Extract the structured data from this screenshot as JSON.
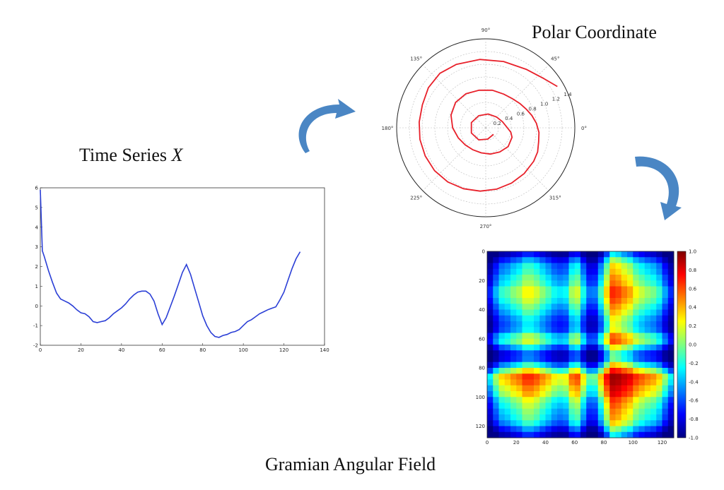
{
  "titles": {
    "time_series": "Time Series",
    "time_series_var": "X",
    "polar": "Polar Coordinate",
    "gaf": "Gramian Angular Field"
  },
  "colors": {
    "time_series_line": "#2b3fd6",
    "polar_line": "#e8202a",
    "arrow": "#4a86c4",
    "grid": "#bbbbbb"
  },
  "chart_data": [
    {
      "type": "line",
      "name": "time-series",
      "xlim": [
        0,
        140
      ],
      "ylim": [
        -2,
        6
      ],
      "xticks": [
        "0",
        "20",
        "40",
        "60",
        "80",
        "100",
        "120",
        "140"
      ],
      "yticks": [
        "6",
        "5",
        "4",
        "3",
        "2",
        "1",
        "0",
        "-1",
        "-2"
      ],
      "x": [
        0,
        1,
        2,
        4,
        6,
        8,
        10,
        12,
        14,
        16,
        18,
        20,
        22,
        24,
        26,
        28,
        30,
        32,
        34,
        36,
        38,
        40,
        42,
        44,
        46,
        48,
        50,
        52,
        54,
        56,
        58,
        60,
        62,
        64,
        66,
        68,
        70,
        72,
        74,
        76,
        78,
        80,
        82,
        84,
        86,
        88,
        90,
        92,
        94,
        96,
        98,
        100,
        102,
        104,
        106,
        108,
        110,
        112,
        114,
        116,
        118,
        120,
        122,
        124,
        126,
        128
      ],
      "y": [
        5.9,
        2.8,
        2.5,
        1.8,
        1.2,
        0.65,
        0.35,
        0.25,
        0.15,
        0.0,
        -0.2,
        -0.35,
        -0.4,
        -0.55,
        -0.8,
        -0.85,
        -0.8,
        -0.75,
        -0.6,
        -0.4,
        -0.25,
        -0.1,
        0.1,
        0.35,
        0.55,
        0.7,
        0.75,
        0.75,
        0.6,
        0.25,
        -0.4,
        -0.95,
        -0.6,
        -0.05,
        0.5,
        1.1,
        1.7,
        2.1,
        1.6,
        0.9,
        0.2,
        -0.5,
        -1.0,
        -1.35,
        -1.55,
        -1.6,
        -1.5,
        -1.45,
        -1.35,
        -1.3,
        -1.2,
        -1.0,
        -0.8,
        -0.7,
        -0.55,
        -0.4,
        -0.3,
        -0.2,
        -0.12,
        -0.05,
        0.3,
        0.7,
        1.3,
        1.9,
        2.4,
        2.75
      ]
    },
    {
      "type": "line",
      "name": "polar-coordinate",
      "rlim": [
        0,
        1.4
      ],
      "rticks": [
        "0.2",
        "0.4",
        "0.6",
        "0.8",
        "1.0",
        "1.2",
        "1.4"
      ],
      "angle_ticks": [
        "0°",
        "45°",
        "90°",
        "135°",
        "180°",
        "225°",
        "270°",
        "315°"
      ],
      "theta_deg": [
        30,
        40,
        55,
        75,
        95,
        115,
        130,
        145,
        160,
        175,
        190,
        205,
        220,
        235,
        250,
        265,
        280,
        295,
        310,
        325,
        335,
        345,
        355,
        5,
        15,
        25,
        35,
        48,
        62,
        80,
        100,
        120,
        140,
        160,
        180,
        200,
        220,
        240,
        260,
        280,
        300,
        320,
        340,
        350,
        0,
        20,
        45,
        80,
        120,
        160,
        200,
        240,
        280,
        320
      ],
      "r": [
        1.3,
        1.2,
        1.12,
        1.08,
        1.08,
        1.1,
        1.12,
        1.1,
        1.06,
        1.05,
        1.05,
        1.05,
        1.05,
        1.04,
        1.02,
        1.0,
        0.98,
        0.96,
        0.94,
        0.92,
        0.9,
        0.86,
        0.84,
        0.8,
        0.75,
        0.7,
        0.66,
        0.62,
        0.6,
        0.6,
        0.6,
        0.62,
        0.62,
        0.58,
        0.52,
        0.46,
        0.42,
        0.4,
        0.4,
        0.42,
        0.44,
        0.46,
        0.44,
        0.4,
        0.34,
        0.28,
        0.24,
        0.22,
        0.22,
        0.24,
        0.24,
        0.22,
        0.18,
        0.16
      ]
    },
    {
      "type": "heatmap",
      "name": "gramian-angular-field",
      "size": 128,
      "xticks": [
        "0",
        "20",
        "40",
        "60",
        "80",
        "100",
        "120"
      ],
      "yticks": [
        "0",
        "20",
        "40",
        "60",
        "80",
        "100",
        "120"
      ],
      "colorbar": [
        "1.0",
        "0.8",
        "0.6",
        "0.4",
        "0.2",
        "0.0",
        "-0.2",
        "-0.4",
        "-0.6",
        "-0.8",
        "-1.0"
      ],
      "vmin": -1.0,
      "vmax": 1.0
    }
  ]
}
